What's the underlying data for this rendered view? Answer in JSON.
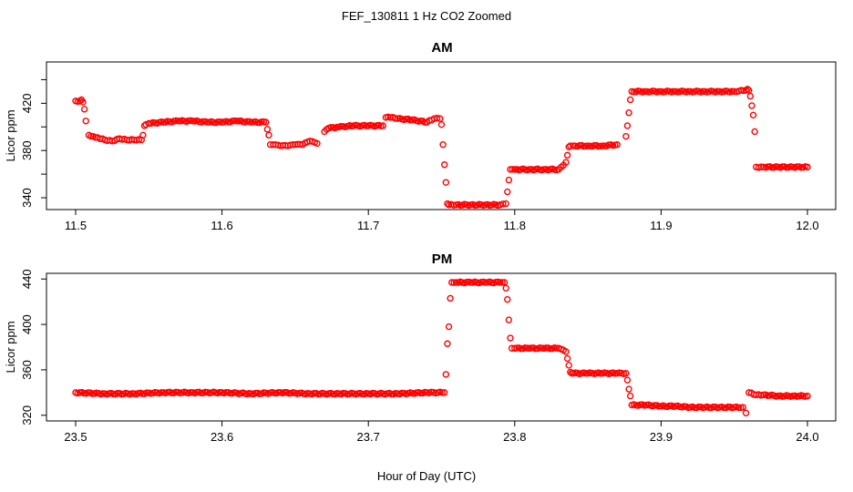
{
  "figure": {
    "title": "FEF_130811  1 Hz CO2 Zoomed",
    "xlabel": "Hour of Day (UTC)"
  },
  "colors": {
    "points": "#ff0000",
    "axes": "#000000",
    "background": "#ffffff"
  },
  "chart_data": [
    {
      "type": "scatter",
      "title": "AM",
      "xlabel": "",
      "ylabel": "Licor ppm",
      "xlim": [
        11.5,
        12.0
      ],
      "ylim": [
        330,
        455
      ],
      "xticks": [
        11.5,
        11.6,
        11.7,
        11.8,
        11.9,
        12.0
      ],
      "xtick_labels": [
        "11.5",
        "11.6",
        "11.7",
        "11.8",
        "11.9",
        "12.0"
      ],
      "yticks": [
        340,
        360,
        380,
        400,
        420,
        440
      ],
      "ytick_labels": [
        "340",
        "",
        "380",
        "",
        "420",
        ""
      ],
      "grid": false,
      "series": [
        {
          "color": "#ff0000",
          "marker": "open-circle",
          "x": [
            11.5,
            11.503,
            11.504,
            11.505,
            11.506,
            11.507,
            11.509,
            11.512,
            11.515,
            11.52,
            11.525,
            11.53,
            11.535,
            11.54,
            11.545,
            11.546,
            11.547,
            11.548,
            11.55,
            11.56,
            11.57,
            11.58,
            11.59,
            11.6,
            11.61,
            11.62,
            11.63,
            11.631,
            11.632,
            11.633,
            11.635,
            11.64,
            11.645,
            11.65,
            11.655,
            11.66,
            11.665,
            11.67,
            11.673,
            11.68,
            11.69,
            11.7,
            11.71,
            11.712,
            11.715,
            11.72,
            11.73,
            11.74,
            11.745,
            11.749,
            11.75,
            11.751,
            11.752,
            11.753,
            11.754,
            11.755,
            11.76,
            11.77,
            11.78,
            11.79,
            11.794,
            11.795,
            11.796,
            11.797,
            11.8,
            11.81,
            11.82,
            11.83,
            11.835,
            11.836,
            11.837,
            11.838,
            11.84,
            11.85,
            11.86,
            11.87,
            11.876,
            11.877,
            11.878,
            11.879,
            11.88,
            11.89,
            11.9,
            11.91,
            11.92,
            11.93,
            11.94,
            11.95,
            11.958,
            11.959,
            11.96,
            11.961,
            11.962,
            11.963,
            11.964,
            11.965,
            11.97,
            11.98,
            11.99,
            12.0
          ],
          "y": [
            422,
            422,
            423,
            421,
            415,
            405,
            393,
            392,
            391,
            389,
            388,
            390,
            389,
            389,
            389,
            393,
            401,
            402,
            403,
            404,
            405,
            405,
            404,
            404,
            405,
            404,
            404,
            398,
            393,
            385,
            385,
            384,
            384,
            385,
            385,
            388,
            386,
            396,
            399,
            400,
            401,
            401,
            401,
            408,
            408,
            407,
            406,
            404,
            407,
            407,
            402,
            385,
            368,
            353,
            335,
            334,
            334,
            334,
            334,
            334,
            335,
            345,
            355,
            364,
            364,
            364,
            364,
            364,
            370,
            376,
            383,
            384,
            384,
            384,
            384,
            385,
            392,
            401,
            412,
            423,
            430,
            430,
            430,
            430,
            430,
            430,
            430,
            430,
            431,
            432,
            431,
            426,
            418,
            410,
            396,
            366,
            366,
            366,
            366,
            366
          ]
        }
      ]
    },
    {
      "type": "scatter",
      "title": "PM",
      "xlabel": "",
      "ylabel": "Licor ppm",
      "xlim": [
        23.5,
        24.0
      ],
      "ylim": [
        315,
        445
      ],
      "xticks": [
        23.5,
        23.6,
        23.7,
        23.8,
        23.9,
        24.0
      ],
      "xtick_labels": [
        "23.5",
        "23.6",
        "23.7",
        "23.8",
        "23.9",
        "24.0"
      ],
      "yticks": [
        320,
        360,
        400,
        440
      ],
      "ytick_labels": [
        "320",
        "360",
        "400",
        "440"
      ],
      "grid": false,
      "series": [
        {
          "color": "#ff0000",
          "marker": "open-circle",
          "x": [
            23.5,
            23.52,
            23.54,
            23.56,
            23.58,
            23.6,
            23.62,
            23.64,
            23.66,
            23.68,
            23.7,
            23.72,
            23.74,
            23.752,
            23.753,
            23.754,
            23.755,
            23.756,
            23.757,
            23.76,
            23.77,
            23.78,
            23.79,
            23.793,
            23.794,
            23.795,
            23.796,
            23.797,
            23.798,
            23.8,
            23.81,
            23.82,
            23.83,
            23.835,
            23.836,
            23.837,
            23.838,
            23.839,
            23.84,
            23.85,
            23.86,
            23.87,
            23.876,
            23.877,
            23.878,
            23.879,
            23.88,
            23.89,
            23.9,
            23.91,
            23.92,
            23.93,
            23.94,
            23.95,
            23.956,
            23.958,
            23.96,
            23.965,
            23.97,
            23.98,
            23.99,
            24.0
          ],
          "y": [
            340,
            339,
            339,
            340,
            340,
            340,
            339,
            340,
            339,
            339,
            339,
            339,
            340,
            340,
            356,
            383,
            398,
            423,
            437,
            437,
            437,
            437,
            437,
            437,
            432,
            422,
            404,
            388,
            379,
            379,
            379,
            379,
            379,
            376,
            370,
            364,
            358,
            357,
            357,
            357,
            357,
            357,
            357,
            351,
            343,
            337,
            329,
            329,
            328,
            328,
            327,
            327,
            327,
            327,
            327,
            322,
            340,
            338,
            338,
            337,
            337,
            337
          ]
        }
      ]
    }
  ]
}
